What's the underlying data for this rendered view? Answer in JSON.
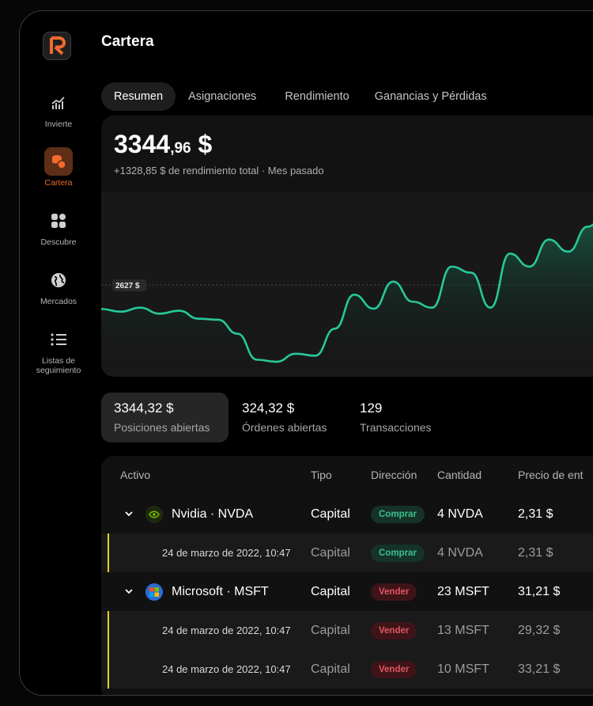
{
  "page_title": "Cartera",
  "nav": [
    {
      "label": "Invierte",
      "icon": "chart-growth-icon"
    },
    {
      "label": "Cartera",
      "icon": "coins-icon"
    },
    {
      "label": "Descubre",
      "icon": "grid-icon"
    },
    {
      "label": "Mercados",
      "icon": "globe-icon"
    },
    {
      "label": "Listas de seguimiento",
      "icon": "list-icon"
    }
  ],
  "tabs": [
    "Resumen",
    "Asignaciones",
    "Rendimiento",
    "Ganancias y Pérdidas"
  ],
  "balance": {
    "int": "3344",
    "dec": ",96",
    "cur": " $",
    "perf": "+1328,85 $ de rendimiento total · Mes pasado"
  },
  "chart_data": {
    "type": "area",
    "reference_label": "2627 $",
    "series": [
      {
        "values": [
          2627,
          2600,
          2640,
          2580,
          2610,
          2530,
          2520,
          2380,
          2120,
          2100,
          2180,
          2160,
          2430,
          2770,
          2630,
          2900,
          2700,
          2640,
          3050,
          2990,
          2640,
          3180,
          3050,
          3320,
          3200,
          3450,
          3600
        ]
      }
    ],
    "colors": {
      "line": "#27c89a",
      "fill": "#1b5f47"
    }
  },
  "stats": [
    {
      "value": "3344,32 $",
      "label": "Posiciones abiertas"
    },
    {
      "value": "324,32 $",
      "label": "Órdenes abiertas"
    },
    {
      "value": "129",
      "label": "Transacciones"
    }
  ],
  "table": {
    "columns": [
      "Activo",
      "Tipo",
      "Dirección",
      "Cantidad",
      "Precio de ent"
    ],
    "rows": [
      {
        "kind": "parent",
        "asset": "Nvidia · NVDA",
        "type": "Capital",
        "direction": "Comprar",
        "qty": "4 NVDA",
        "price": "2,31 $",
        "icon": "nvidia-logo-icon"
      },
      {
        "kind": "child",
        "date": "24 de marzo de 2022, 10:47",
        "type": "Capital",
        "direction": "Comprar",
        "qty": "4 NVDA",
        "price": "2,31 $"
      },
      {
        "kind": "parent",
        "asset": "Microsoft · MSFT",
        "type": "Capital",
        "direction": "Vender",
        "qty": "23 MSFT",
        "price": "31,21 $",
        "icon": "microsoft-logo-icon"
      },
      {
        "kind": "child",
        "date": "24 de marzo de 2022, 10:47",
        "type": "Capital",
        "direction": "Vender",
        "qty": "13 MSFT",
        "price": "29,32 $"
      },
      {
        "kind": "child",
        "date": "24 de marzo de 2022, 10:47",
        "type": "Capital",
        "direction": "Vender",
        "qty": "10 MSFT",
        "price": "33,21 $"
      }
    ]
  },
  "colors": {
    "accent": "#f26a2e",
    "positive": "#27c89a",
    "negative": "#e05661",
    "highlight": "#e6d21b"
  }
}
